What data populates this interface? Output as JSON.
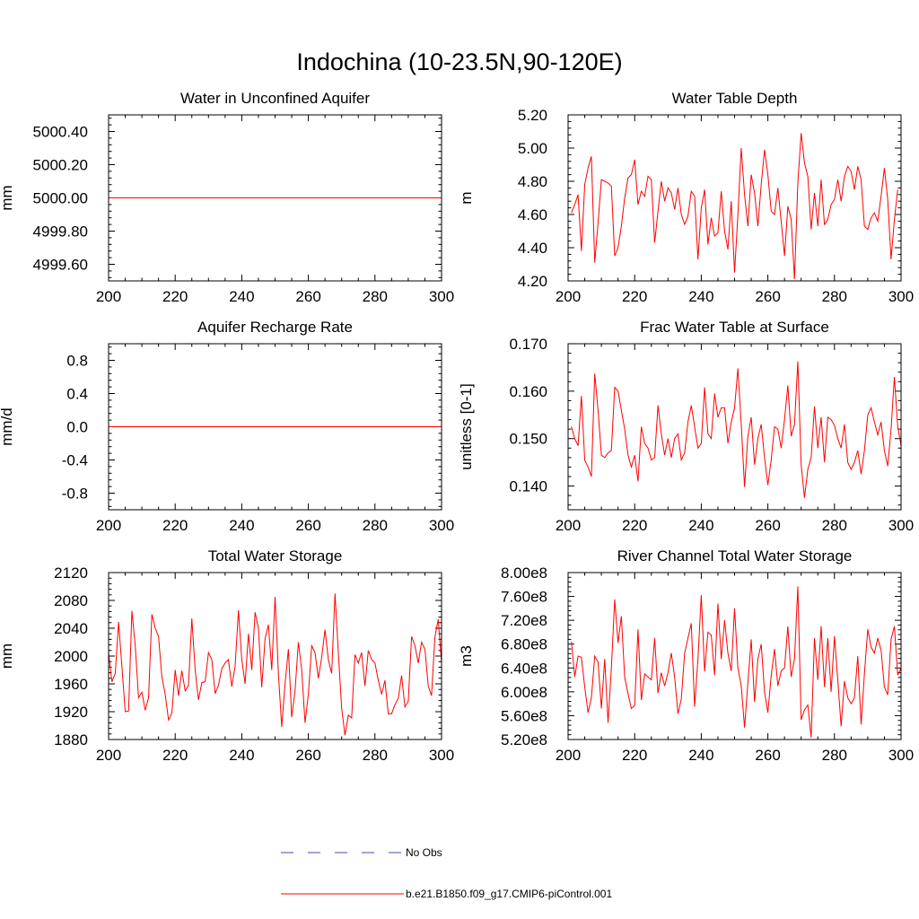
{
  "figure_title": "Indochina (10-23.5N,90-120E)",
  "legend": {
    "entries": [
      {
        "label": "No Obs",
        "color": "#3c4bb4",
        "style": "dashed"
      },
      {
        "label": "b.e21.B1850.f09_g17.CMIP6-piControl.001",
        "color": "#ff0000",
        "style": "solid"
      }
    ]
  },
  "chart_data": [
    {
      "type": "line",
      "title": "Water in Unconfined Aquifer",
      "ylabel": "mm",
      "xlim": [
        200,
        300
      ],
      "ylim": [
        4999.5,
        5000.5
      ],
      "xticks": [
        200,
        220,
        240,
        260,
        280,
        300
      ],
      "yticks": [
        4999.6,
        4999.8,
        5000.0,
        5000.2,
        5000.4
      ],
      "ytick_labels": [
        "4999.60",
        "4999.80",
        "5000.00",
        "5000.20",
        "5000.40"
      ],
      "series": [
        {
          "color": "#ff0000",
          "x": [
            200,
            300
          ],
          "values": [
            5000.0,
            5000.0
          ]
        }
      ]
    },
    {
      "type": "line",
      "title": "Water Table Depth",
      "ylabel": "m",
      "xlim": [
        200,
        300
      ],
      "ylim": [
        4.2,
        5.2
      ],
      "xticks": [
        200,
        220,
        240,
        260,
        280,
        300
      ],
      "yticks": [
        4.2,
        4.4,
        4.6,
        4.8,
        5.0,
        5.2
      ],
      "ytick_labels": [
        "4.20",
        "4.40",
        "4.60",
        "4.80",
        "5.00",
        "5.20"
      ],
      "series": [
        {
          "color": "#ff0000",
          "x_start": 201,
          "x_step": 1,
          "values": [
            4.61,
            4.66,
            4.72,
            4.38,
            4.78,
            4.88,
            4.95,
            4.31,
            4.55,
            4.81,
            4.8,
            4.79,
            4.77,
            4.35,
            4.4,
            4.53,
            4.7,
            4.82,
            4.84,
            4.93,
            4.66,
            4.74,
            4.71,
            4.83,
            4.81,
            4.43,
            4.62,
            4.8,
            4.68,
            4.76,
            4.73,
            4.63,
            4.76,
            4.6,
            4.54,
            4.59,
            4.74,
            4.71,
            4.33,
            4.64,
            4.75,
            4.42,
            4.58,
            4.47,
            4.49,
            4.74,
            4.5,
            4.39,
            4.68,
            4.25,
            4.6,
            5.0,
            4.72,
            4.53,
            4.84,
            4.73,
            4.53,
            4.78,
            4.99,
            4.84,
            4.62,
            4.6,
            4.76,
            4.56,
            4.35,
            4.65,
            4.57,
            4.21,
            4.79,
            5.09,
            4.91,
            4.83,
            4.51,
            4.73,
            4.53,
            4.81,
            4.54,
            4.57,
            4.66,
            4.69,
            4.81,
            4.68,
            4.83,
            4.89,
            4.86,
            4.75,
            4.89,
            4.81,
            4.53,
            4.51,
            4.58,
            4.61,
            4.56,
            4.71,
            4.88,
            4.69,
            4.33,
            4.57,
            4.75
          ]
        }
      ]
    },
    {
      "type": "line",
      "title": "Aquifer Recharge Rate",
      "ylabel": "mm/d",
      "xlim": [
        200,
        300
      ],
      "ylim": [
        -1.0,
        1.0
      ],
      "xticks": [
        200,
        220,
        240,
        260,
        280,
        300
      ],
      "yticks": [
        -0.8,
        -0.4,
        0.0,
        0.4,
        0.8
      ],
      "ytick_labels": [
        "-0.8",
        "-0.4",
        "0.0",
        "0.4",
        "0.8"
      ],
      "series": [
        {
          "color": "#ff0000",
          "x": [
            200,
            300
          ],
          "values": [
            0.0,
            0.0
          ]
        }
      ]
    },
    {
      "type": "line",
      "title": "Frac Water Table at Surface",
      "ylabel": "unitless [0-1]",
      "xlim": [
        200,
        300
      ],
      "ylim": [
        0.135,
        0.17
      ],
      "xticks": [
        200,
        220,
        240,
        260,
        280,
        300
      ],
      "yticks": [
        0.14,
        0.15,
        0.16,
        0.17
      ],
      "ytick_labels": [
        "0.140",
        "0.150",
        "0.160",
        "0.170"
      ],
      "series": [
        {
          "color": "#ff0000",
          "x_start": 201,
          "x_step": 1,
          "values": [
            0.1525,
            0.15,
            0.1485,
            0.159,
            0.1455,
            0.144,
            0.142,
            0.1637,
            0.156,
            0.1465,
            0.146,
            0.147,
            0.1475,
            0.1608,
            0.16,
            0.156,
            0.152,
            0.1465,
            0.144,
            0.1465,
            0.141,
            0.1525,
            0.149,
            0.148,
            0.1455,
            0.146,
            0.157,
            0.151,
            0.1465,
            0.15,
            0.146,
            0.15,
            0.151,
            0.1455,
            0.147,
            0.1535,
            0.157,
            0.1525,
            0.148,
            0.149,
            0.1608,
            0.151,
            0.15,
            0.1595,
            0.1545,
            0.1565,
            0.1565,
            0.149,
            0.1535,
            0.1565,
            0.1648,
            0.153,
            0.1398,
            0.1505,
            0.1545,
            0.1445,
            0.15,
            0.153,
            0.146,
            0.1402,
            0.1455,
            0.1525,
            0.152,
            0.148,
            0.154,
            0.1612,
            0.1505,
            0.153,
            0.1663,
            0.1445,
            0.1375,
            0.1435,
            0.146,
            0.1568,
            0.148,
            0.1545,
            0.145,
            0.1545,
            0.154,
            0.1528,
            0.15,
            0.148,
            0.153,
            0.145,
            0.1435,
            0.145,
            0.1475,
            0.1425,
            0.1475,
            0.155,
            0.1565,
            0.1535,
            0.1508,
            0.1535,
            0.1475,
            0.1442,
            0.152,
            0.163,
            0.1525,
            0.1485
          ]
        }
      ]
    },
    {
      "type": "line",
      "title": "Total Water Storage",
      "ylabel": "mm",
      "xlim": [
        200,
        300
      ],
      "ylim": [
        1880,
        2120
      ],
      "xticks": [
        200,
        220,
        240,
        260,
        280,
        300
      ],
      "yticks": [
        1880,
        1920,
        1960,
        2000,
        2040,
        2080,
        2120
      ],
      "ytick_labels": [
        "1880",
        "1920",
        "1960",
        "2000",
        "2040",
        "2080",
        "2120"
      ],
      "series": [
        {
          "color": "#ff0000",
          "x_start": 200,
          "x_step": 1,
          "values": [
            2005,
            1963,
            1975,
            2049,
            1985,
            1920,
            1921,
            2065,
            2015,
            1940,
            1948,
            1922,
            1940,
            2060,
            2040,
            2028,
            1970,
            1945,
            1908,
            1918,
            1980,
            1943,
            1979,
            1950,
            1958,
            2054,
            1980,
            1937,
            1962,
            1963,
            2005,
            1995,
            1946,
            1958,
            1982,
            1990,
            1995,
            1956,
            1985,
            2066,
            1995,
            1960,
            2032,
            1980,
            2063,
            2040,
            1955,
            2025,
            2045,
            1980,
            2085,
            1975,
            1898,
            1960,
            2010,
            1912,
            1950,
            2020,
            1980,
            1904,
            1945,
            2015,
            2005,
            1968,
            1998,
            2038,
            1995,
            1975,
            2090,
            2005,
            1925,
            1886,
            1915,
            1911,
            2002,
            1990,
            2005,
            1957,
            2008,
            1995,
            1990,
            1965,
            1945,
            1965,
            1917,
            1917,
            1930,
            1939,
            1972,
            1927,
            1935,
            2028,
            2015,
            1990,
            2020,
            2010,
            1957,
            1943,
            2027,
            2053,
            1990
          ]
        }
      ]
    },
    {
      "type": "line",
      "title": "River Channel Total Water Storage",
      "ylabel": "m3",
      "xlim": [
        200,
        300
      ],
      "ylim": [
        520000000,
        800000000
      ],
      "xticks": [
        200,
        220,
        240,
        260,
        280,
        300
      ],
      "yticks": [
        520000000,
        560000000,
        600000000,
        640000000,
        680000000,
        720000000,
        760000000,
        800000000
      ],
      "ytick_labels": [
        "5.20e8",
        "5.60e8",
        "6.00e8",
        "6.40e8",
        "6.80e8",
        "7.20e8",
        "7.60e8",
        "8.00e8"
      ],
      "series": [
        {
          "color": "#ff0000",
          "x_start": 201,
          "x_step": 1,
          "values": [
            684000000,
            625000000,
            660000000,
            658000000,
            608000000,
            565000000,
            590000000,
            660000000,
            650000000,
            572000000,
            655000000,
            548000000,
            640000000,
            755000000,
            682000000,
            727000000,
            624000000,
            597000000,
            572000000,
            577000000,
            705000000,
            586000000,
            630000000,
            625000000,
            620000000,
            690000000,
            598000000,
            632000000,
            610000000,
            632000000,
            665000000,
            625000000,
            563000000,
            588000000,
            665000000,
            690000000,
            715000000,
            575000000,
            655000000,
            762000000,
            634000000,
            700000000,
            695000000,
            628000000,
            748000000,
            655000000,
            720000000,
            665000000,
            635000000,
            740000000,
            640000000,
            610000000,
            540000000,
            615000000,
            688000000,
            583000000,
            655000000,
            680000000,
            600000000,
            565000000,
            627000000,
            672000000,
            610000000,
            635000000,
            640000000,
            710000000,
            625000000,
            655000000,
            777000000,
            553000000,
            570000000,
            578000000,
            523000000,
            690000000,
            620000000,
            710000000,
            608000000,
            690000000,
            600000000,
            693000000,
            620000000,
            542000000,
            618000000,
            590000000,
            580000000,
            590000000,
            660000000,
            545000000,
            630000000,
            705000000,
            675000000,
            665000000,
            690000000,
            670000000,
            608000000,
            595000000,
            688000000,
            710000000,
            628000000,
            640000000
          ]
        }
      ]
    }
  ]
}
